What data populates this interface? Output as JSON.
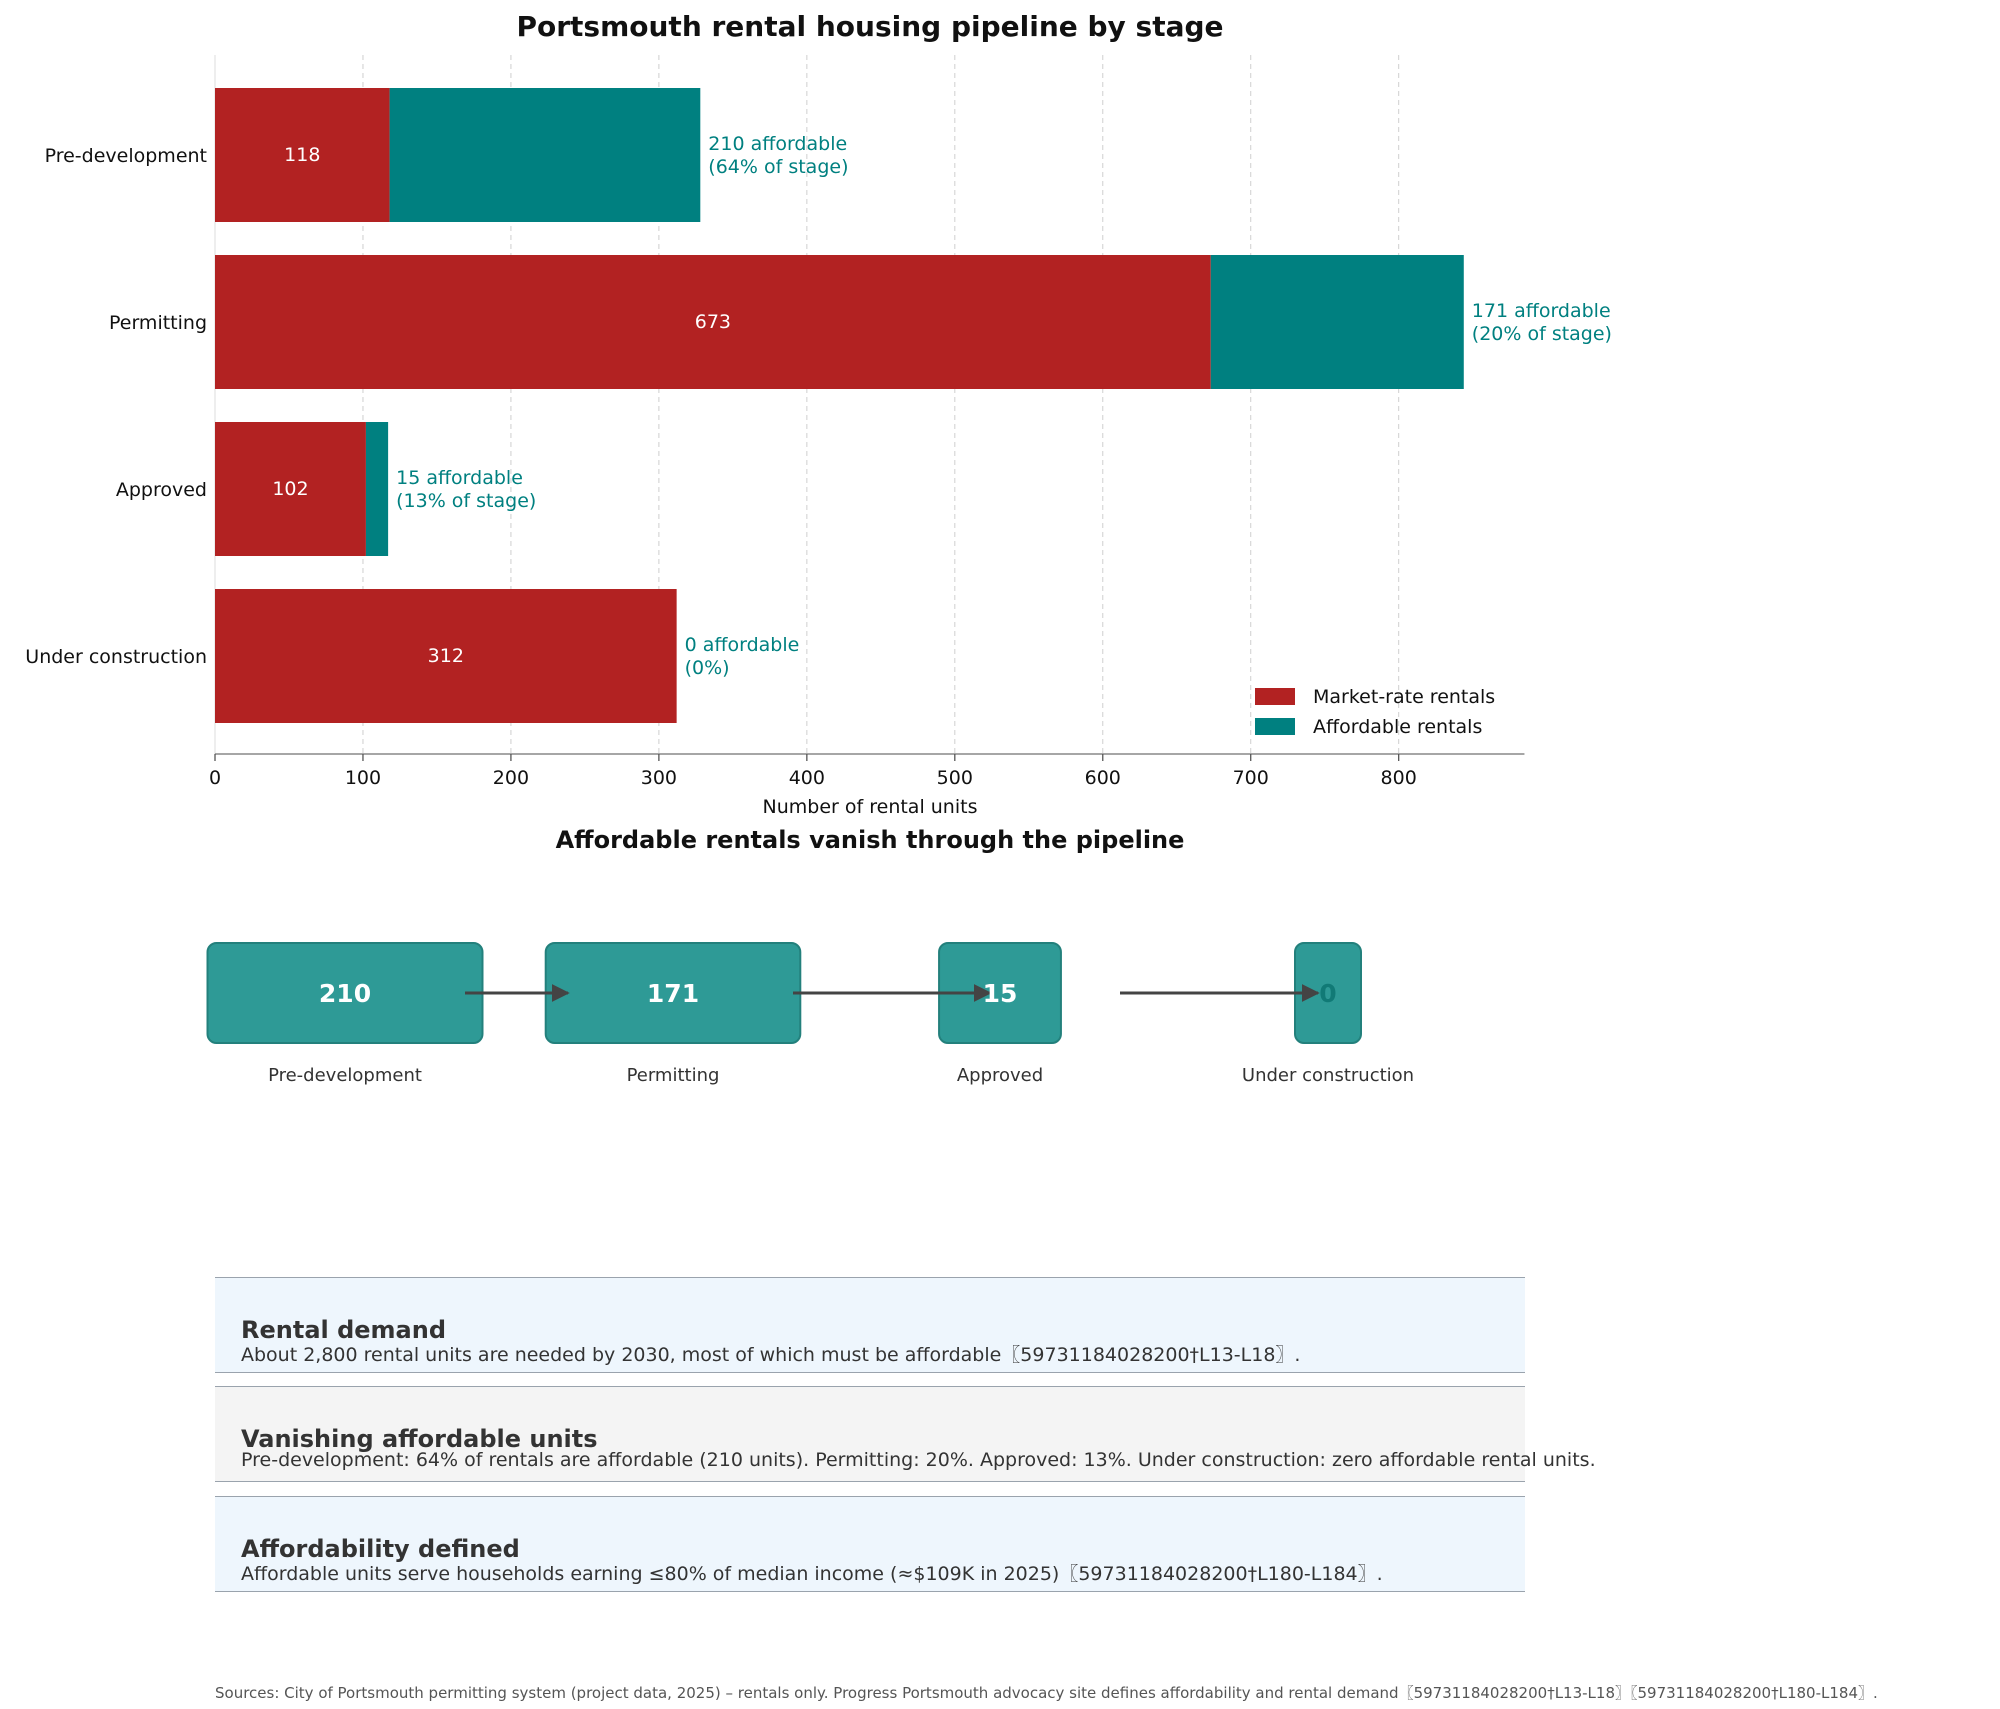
{
  "chart_data": [
    {
      "type": "bar",
      "orientation": "horizontal",
      "stacked": true,
      "title": "Portsmouth rental housing pipeline by stage",
      "xlabel": "Number of rental units",
      "ylabel": "",
      "xlim": [
        0,
        885
      ],
      "xticks": [
        0,
        100,
        200,
        300,
        400,
        500,
        600,
        700,
        800
      ],
      "grid": "x",
      "legend": "bottom-right",
      "categories": [
        "Pre-development",
        "Permitting",
        "Approved",
        "Under construction"
      ],
      "series": [
        {
          "name": "Market-rate rentals",
          "values": [
            118,
            673,
            102,
            312
          ],
          "color": "#b22222"
        },
        {
          "name": "Affordable rentals",
          "values": [
            210,
            171,
            15,
            0
          ],
          "color": "#008080"
        }
      ],
      "annotations": [
        [
          "210 affordable",
          "(64% of stage)"
        ],
        [
          "171 affordable",
          "(20% of stage)"
        ],
        [
          "15 affordable",
          "(13% of stage)"
        ],
        [
          "0 affordable",
          "(0%)"
        ]
      ],
      "annotation_color": "#008080"
    },
    {
      "type": "flow",
      "title": "Affordable rentals vanish through the pipeline",
      "stages": [
        "Pre-development",
        "Permitting",
        "Approved",
        "Under construction"
      ],
      "values": [
        210,
        171,
        15,
        0
      ],
      "color": "#2e9a96"
    }
  ],
  "cards": [
    {
      "title": "Rental demand",
      "text": "About 2,800 rental units are needed by 2030, most of which must be affordable〖59731184028200†L13-L18〗.",
      "bg": "#eef6fd"
    },
    {
      "title": "Vanishing affordable units",
      "text": "Pre-development: 64% of rentals are affordable (210 units). Permitting: 20%. Approved: 13%. Under construction: zero affordable rental units.",
      "bg": "#f4f4f4"
    },
    {
      "title": "Affordability defined",
      "text": "Affordable units serve households earning ≤80% of median income (≈$109K in 2025)〖59731184028200†L180-L184〗.",
      "bg": "#eef6fd"
    }
  ],
  "sources": "Sources: City of Portsmouth permitting system (project data, 2025) – rentals only. Progress Portsmouth advocacy site defines affordability and rental demand〖59731184028200†L13-L18〗〖59731184028200†L180-L184〗."
}
